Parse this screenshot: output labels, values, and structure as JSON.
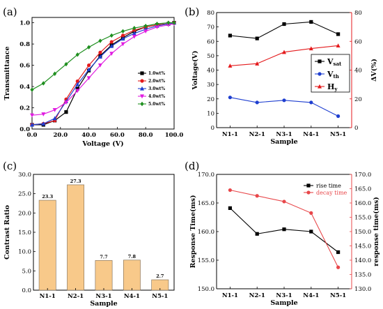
{
  "panels": {
    "a": "(a)",
    "b": "(b)",
    "c": "(c)",
    "d": "(d)"
  },
  "chart_data": [
    {
      "id": "a",
      "type": "line",
      "xlabel": "Voltage (V)",
      "ylabel": "Transmittance",
      "xlim": [
        0,
        100
      ],
      "ylim": [
        0,
        1.05
      ],
      "xticks": [
        0,
        20,
        40,
        60,
        80,
        100
      ],
      "xtick_labels": [
        "0.0",
        "20.0",
        "40.0",
        "60.0",
        "80.0",
        "100.0"
      ],
      "yticks": [
        0,
        0.2,
        0.4,
        0.6,
        0.8,
        1.0
      ],
      "ytick_labels": [
        "0.0",
        "0.2",
        "0.4",
        "0.6",
        "0.8",
        "1.0"
      ],
      "legend": "right",
      "series": [
        {
          "name": "1.0wt%",
          "color": "#000000",
          "marker": "square",
          "points": [
            [
              0,
              0.04
            ],
            [
              8,
              0.04
            ],
            [
              16,
              0.08
            ],
            [
              24,
              0.16
            ],
            [
              32,
              0.38
            ],
            [
              40,
              0.55
            ],
            [
              48,
              0.69
            ],
            [
              56,
              0.79
            ],
            [
              64,
              0.86
            ],
            [
              72,
              0.92
            ],
            [
              80,
              0.96
            ],
            [
              88,
              0.98
            ],
            [
              96,
              0.99
            ],
            [
              100,
              1.0
            ]
          ]
        },
        {
          "name": "2.0wt%",
          "color": "#e41a1c",
          "marker": "circle",
          "points": [
            [
              0,
              0.04
            ],
            [
              8,
              0.05
            ],
            [
              16,
              0.08
            ],
            [
              24,
              0.28
            ],
            [
              32,
              0.45
            ],
            [
              40,
              0.6
            ],
            [
              48,
              0.72
            ],
            [
              56,
              0.82
            ],
            [
              64,
              0.88
            ],
            [
              72,
              0.93
            ],
            [
              80,
              0.96
            ],
            [
              88,
              0.98
            ],
            [
              96,
              0.99
            ],
            [
              100,
              1.0
            ]
          ]
        },
        {
          "name": "3.0wt%",
          "color": "#1f3fd0",
          "marker": "triangle",
          "points": [
            [
              0,
              0.04
            ],
            [
              8,
              0.05
            ],
            [
              16,
              0.1
            ],
            [
              24,
              0.26
            ],
            [
              32,
              0.42
            ],
            [
              40,
              0.56
            ],
            [
              48,
              0.68
            ],
            [
              56,
              0.78
            ],
            [
              64,
              0.85
            ],
            [
              72,
              0.9
            ],
            [
              80,
              0.94
            ],
            [
              88,
              0.97
            ],
            [
              96,
              0.99
            ],
            [
              100,
              1.0
            ]
          ]
        },
        {
          "name": "4.0wt%",
          "color": "#e01ce0",
          "marker": "triangle-down",
          "points": [
            [
              0,
              0.13
            ],
            [
              8,
              0.14
            ],
            [
              16,
              0.18
            ],
            [
              24,
              0.25
            ],
            [
              32,
              0.36
            ],
            [
              40,
              0.48
            ],
            [
              48,
              0.6
            ],
            [
              56,
              0.71
            ],
            [
              64,
              0.8
            ],
            [
              72,
              0.87
            ],
            [
              80,
              0.92
            ],
            [
              88,
              0.96
            ],
            [
              96,
              0.98
            ],
            [
              100,
              0.99
            ]
          ]
        },
        {
          "name": "5.0wt%",
          "color": "#1f8f1f",
          "marker": "diamond",
          "points": [
            [
              0,
              0.37
            ],
            [
              8,
              0.43
            ],
            [
              16,
              0.52
            ],
            [
              24,
              0.61
            ],
            [
              32,
              0.7
            ],
            [
              40,
              0.77
            ],
            [
              48,
              0.83
            ],
            [
              56,
              0.88
            ],
            [
              64,
              0.92
            ],
            [
              72,
              0.95
            ],
            [
              80,
              0.97
            ],
            [
              88,
              0.99
            ],
            [
              96,
              1.0
            ],
            [
              100,
              1.0
            ]
          ]
        }
      ]
    },
    {
      "id": "b",
      "type": "line",
      "xlabel": "Sample",
      "ylabel": "Voltage(V)",
      "ylabel_right": "ΔV(%)",
      "categories": [
        "N1-1",
        "N2-1",
        "N3-1",
        "N4-1",
        "N5-1"
      ],
      "ylim": [
        0,
        80
      ],
      "yticks": [
        0,
        10,
        20,
        30,
        40,
        50,
        60,
        70,
        80
      ],
      "ylim_right": [
        0,
        80
      ],
      "yticks_right": [
        0,
        20,
        40,
        60,
        80
      ],
      "legend": "right",
      "series": [
        {
          "name": "V",
          "sub": "sat",
          "axis": "left",
          "color": "#000000",
          "marker": "square",
          "values": [
            64,
            62,
            72,
            73.5,
            65
          ]
        },
        {
          "name": "V",
          "sub": "th",
          "axis": "left",
          "color": "#1f3fd0",
          "marker": "circle",
          "values": [
            21,
            17.5,
            19,
            17.5,
            8
          ]
        },
        {
          "name": "H",
          "sub": "y",
          "axis": "right",
          "color": "#e41a1c",
          "marker": "triangle",
          "values": [
            43,
            44.5,
            52.5,
            55,
            57
          ]
        }
      ]
    },
    {
      "id": "c",
      "type": "bar",
      "xlabel": "Sample",
      "ylabel": "Contrast Ratio",
      "categories": [
        "N1-1",
        "N2-1",
        "N3-1",
        "N4-1",
        "N5-1"
      ],
      "values": [
        23.3,
        27.3,
        7.7,
        7.8,
        2.7
      ],
      "data_labels": [
        "23.3",
        "27.3",
        "7.7",
        "7.8",
        "2.7"
      ],
      "ylim": [
        0,
        30
      ],
      "yticks": [
        0,
        5,
        10,
        15,
        20,
        25,
        30
      ],
      "ytick_labels": [
        "0.0",
        "5.0",
        "10.0",
        "15.0",
        "20.0",
        "25.0",
        "30.0"
      ],
      "bar_color": "#f8c98a"
    },
    {
      "id": "d",
      "type": "line",
      "xlabel": "Sample",
      "ylabel": "Response Time(ms)",
      "ylabel_right": "response time(ms)",
      "categories": [
        "N1-1",
        "N2-1",
        "N3-1",
        "N4-1",
        "N5-1"
      ],
      "ylim": [
        150,
        170
      ],
      "yticks": [
        150,
        155,
        160,
        165,
        170
      ],
      "ytick_labels": [
        "150.0",
        "155.0",
        "160.0",
        "165.0",
        "170.0"
      ],
      "ylim_right": [
        130,
        170
      ],
      "yticks_right": [
        130,
        135,
        140,
        145,
        150,
        155,
        160,
        165,
        170
      ],
      "ytick_labels_right": [
        "130.0",
        "135.0",
        "140.0",
        "145.0",
        "150.0",
        "155.0",
        "160.0",
        "165.0",
        "170.0"
      ],
      "legend": "top-right",
      "series": [
        {
          "name": "rise time",
          "axis": "left",
          "color": "#000000",
          "marker": "square",
          "values": [
            164.1,
            159.6,
            160.4,
            160.0,
            156.4
          ]
        },
        {
          "name": "decay time",
          "axis": "right",
          "color": "#e8474a",
          "marker": "circle",
          "values": [
            164.5,
            162.5,
            160.5,
            156.5,
            137.5
          ]
        }
      ]
    }
  ]
}
